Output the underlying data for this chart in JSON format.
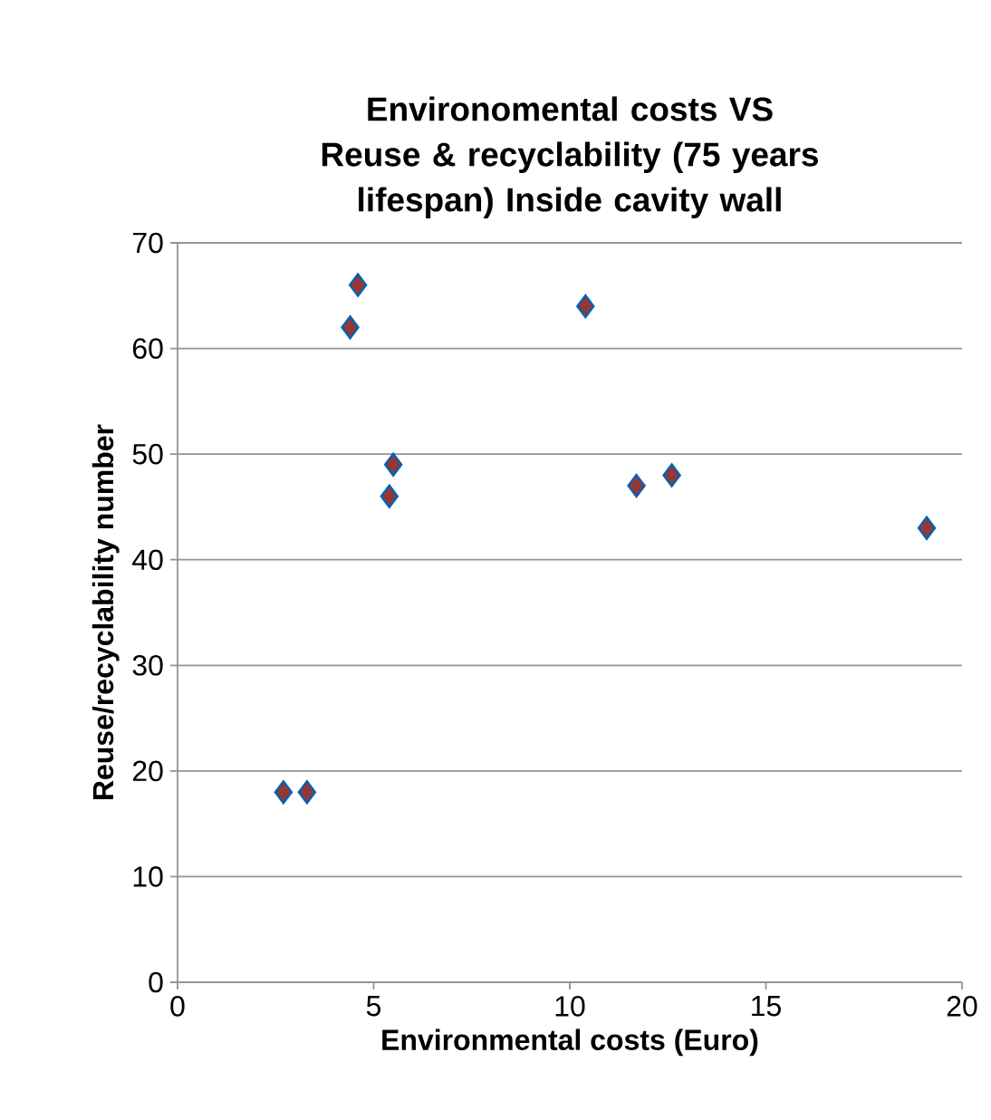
{
  "chart_data": {
    "type": "scatter",
    "title": "Environomental costs VS Reuse & recyclability (75 years lifespan) Inside cavity wall",
    "xlabel": "Environmental costs (Euro)",
    "ylabel": "Reuse/recyclability number",
    "x": [
      2.7,
      3.3,
      4.4,
      4.6,
      5.4,
      5.5,
      10.4,
      11.7,
      12.6,
      19.1
    ],
    "series": [
      {
        "color": "#953735",
        "values": [
          18,
          18,
          62,
          66,
          46,
          49,
          64,
          47,
          48,
          43
        ]
      }
    ],
    "xlim": [
      0,
      20
    ],
    "xticks": [
      0,
      5,
      10,
      15,
      20
    ],
    "ylim": [
      0,
      70
    ],
    "yticks": [
      0,
      10,
      20,
      30,
      40,
      50,
      60,
      70
    ],
    "grid": "y",
    "marker": "diamond",
    "legend": false
  }
}
